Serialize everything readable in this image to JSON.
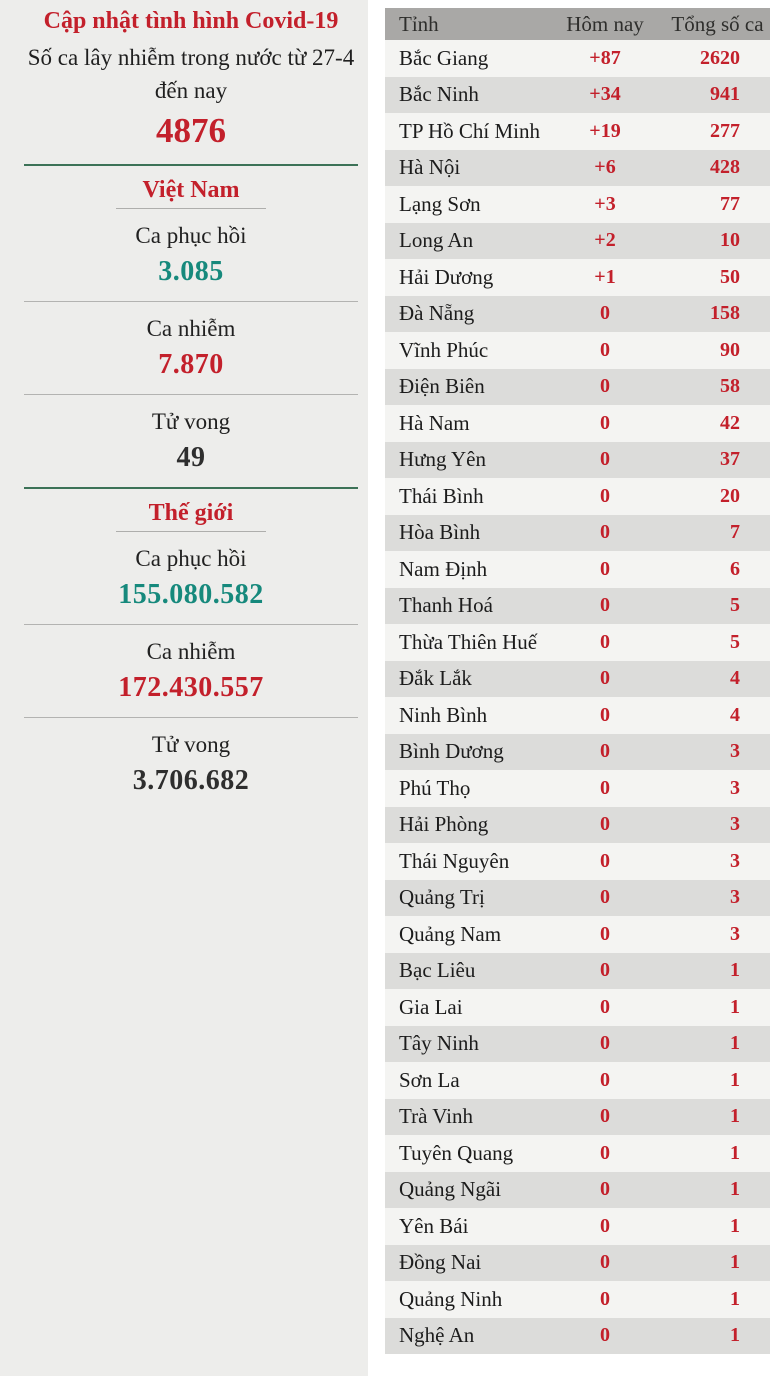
{
  "left_panel": {
    "title": "Cập nhật tình hình Covid-19",
    "subtitle": "Số ca lây nhiễm trong nước từ 27-4 đến nay",
    "outbreak_total": "4876",
    "sections": [
      {
        "heading": "Việt Nam",
        "stats": [
          {
            "label": "Ca phục hồi",
            "value": "3.085",
            "tone": "teal"
          },
          {
            "label": "Ca nhiễm",
            "value": "7.870",
            "tone": "red"
          },
          {
            "label": "Tử vong",
            "value": "49",
            "tone": "dark"
          }
        ]
      },
      {
        "heading": "Thế giới",
        "stats": [
          {
            "label": "Ca phục hồi",
            "value": "155.080.582",
            "tone": "teal"
          },
          {
            "label": "Ca nhiễm",
            "value": "172.430.557",
            "tone": "red"
          },
          {
            "label": "Tử vong",
            "value": "3.706.682",
            "tone": "dark"
          }
        ]
      }
    ]
  },
  "table": {
    "headers": [
      "Tỉnh",
      "Hôm nay",
      "Tổng số ca"
    ],
    "rows": [
      [
        "Bắc Giang",
        "+87",
        "2620"
      ],
      [
        "Bắc Ninh",
        "+34",
        "941"
      ],
      [
        "TP Hồ Chí Minh",
        "+19",
        "277"
      ],
      [
        "Hà Nội",
        "+6",
        "428"
      ],
      [
        "Lạng Sơn",
        "+3",
        "77"
      ],
      [
        "Long An",
        "+2",
        "10"
      ],
      [
        "Hải Dương",
        "+1",
        "50"
      ],
      [
        "Đà Nẵng",
        "0",
        "158"
      ],
      [
        "Vĩnh Phúc",
        "0",
        "90"
      ],
      [
        "Điện Biên",
        "0",
        "58"
      ],
      [
        "Hà Nam",
        "0",
        "42"
      ],
      [
        "Hưng Yên",
        "0",
        "37"
      ],
      [
        "Thái Bình",
        "0",
        "20"
      ],
      [
        "Hòa Bình",
        "0",
        "7"
      ],
      [
        "Nam Định",
        "0",
        "6"
      ],
      [
        "Thanh Hoá",
        "0",
        "5"
      ],
      [
        "Thừa Thiên Huế",
        "0",
        "5"
      ],
      [
        "Đắk Lắk",
        "0",
        "4"
      ],
      [
        "Ninh Bình",
        "0",
        "4"
      ],
      [
        "Bình Dương",
        "0",
        "3"
      ],
      [
        "Phú Thọ",
        "0",
        "3"
      ],
      [
        "Hải Phòng",
        "0",
        "3"
      ],
      [
        "Thái Nguyên",
        "0",
        "3"
      ],
      [
        "Quảng Trị",
        "0",
        "3"
      ],
      [
        "Quảng Nam",
        "0",
        "3"
      ],
      [
        "Bạc Liêu",
        "0",
        "1"
      ],
      [
        "Gia Lai",
        "0",
        "1"
      ],
      [
        "Tây Ninh",
        "0",
        "1"
      ],
      [
        "Sơn La",
        "0",
        "1"
      ],
      [
        "Trà Vinh",
        "0",
        "1"
      ],
      [
        "Tuyên Quang",
        "0",
        "1"
      ],
      [
        "Quảng Ngãi",
        "0",
        "1"
      ],
      [
        "Yên Bái",
        "0",
        "1"
      ],
      [
        "Đồng Nai",
        "0",
        "1"
      ],
      [
        "Quảng Ninh",
        "0",
        "1"
      ],
      [
        "Nghệ An",
        "0",
        "1"
      ]
    ]
  },
  "colors": {
    "accent_red": "#c3202b",
    "accent_teal": "#16897c",
    "value_dark": "#2e2e2e",
    "green_divider": "#3c7257",
    "table_header_bg": "#a9a8a6",
    "row_stripe_gray": "#dcdcda",
    "row_plain": "#f4f4f2",
    "panel_bg": "#ededeb"
  },
  "chart_data": {
    "type": "table",
    "title": "Cập nhật tình hình Covid-19",
    "summary": {
      "domestic_cases_since_27_4": 4876,
      "vietnam": {
        "recovered": 3085,
        "infected": 7870,
        "deaths": 49
      },
      "world": {
        "recovered": 155080582,
        "infected": 172430557,
        "deaths": 3706682
      }
    },
    "columns": [
      "Tỉnh",
      "Hôm nay",
      "Tổng số ca"
    ],
    "rows": [
      [
        "Bắc Giang",
        87,
        2620
      ],
      [
        "Bắc Ninh",
        34,
        941
      ],
      [
        "TP Hồ Chí Minh",
        19,
        277
      ],
      [
        "Hà Nội",
        6,
        428
      ],
      [
        "Lạng Sơn",
        3,
        77
      ],
      [
        "Long An",
        2,
        10
      ],
      [
        "Hải Dương",
        1,
        50
      ],
      [
        "Đà Nẵng",
        0,
        158
      ],
      [
        "Vĩnh Phúc",
        0,
        90
      ],
      [
        "Điện Biên",
        0,
        58
      ],
      [
        "Hà Nam",
        0,
        42
      ],
      [
        "Hưng Yên",
        0,
        37
      ],
      [
        "Thái Bình",
        0,
        20
      ],
      [
        "Hòa Bình",
        0,
        7
      ],
      [
        "Nam Định",
        0,
        6
      ],
      [
        "Thanh Hoá",
        0,
        5
      ],
      [
        "Thừa Thiên Huế",
        0,
        5
      ],
      [
        "Đắk Lắk",
        0,
        4
      ],
      [
        "Ninh Bình",
        0,
        4
      ],
      [
        "Bình Dương",
        0,
        3
      ],
      [
        "Phú Thọ",
        0,
        3
      ],
      [
        "Hải Phòng",
        0,
        3
      ],
      [
        "Thái Nguyên",
        0,
        3
      ],
      [
        "Quảng Trị",
        0,
        3
      ],
      [
        "Quảng Nam",
        0,
        3
      ],
      [
        "Bạc Liêu",
        0,
        1
      ],
      [
        "Gia Lai",
        0,
        1
      ],
      [
        "Tây Ninh",
        0,
        1
      ],
      [
        "Sơn La",
        0,
        1
      ],
      [
        "Trà Vinh",
        0,
        1
      ],
      [
        "Tuyên Quang",
        0,
        1
      ],
      [
        "Quảng Ngãi",
        0,
        1
      ],
      [
        "Yên Bái",
        0,
        1
      ],
      [
        "Đồng Nai",
        0,
        1
      ],
      [
        "Quảng Ninh",
        0,
        1
      ],
      [
        "Nghệ An",
        0,
        1
      ]
    ]
  }
}
